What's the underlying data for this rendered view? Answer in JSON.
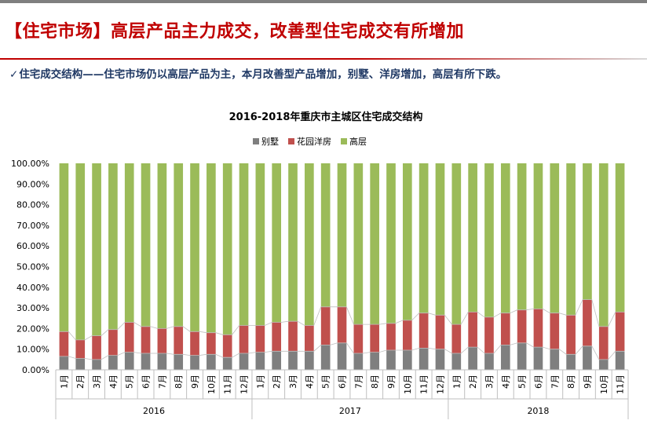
{
  "page": {
    "headline": "【住宅市场】高层产品主力成交，改善型住宅成交有所增加",
    "check_mark": "✓",
    "subhead": "住宅成交结构——住宅市场仍以高层产品为主，本月改善型产品增加，别墅、洋房增加，高层有所下跌。"
  },
  "chart_data": {
    "type": "bar",
    "stacked": true,
    "title": "2016-2018年重庆市主城区住宅成交结构",
    "legend_position": "top-center",
    "grid": false,
    "ylim": [
      0,
      100
    ],
    "y_ticks": [
      "0.00%",
      "10.00%",
      "20.00%",
      "30.00%",
      "40.00%",
      "50.00%",
      "60.00%",
      "70.00%",
      "80.00%",
      "90.00%",
      "100.00%"
    ],
    "year_groups": [
      {
        "label": "2016",
        "count": 12
      },
      {
        "label": "2017",
        "count": 12
      },
      {
        "label": "2018",
        "count": 11
      }
    ],
    "categories": [
      "1月",
      "2月",
      "3月",
      "4月",
      "5月",
      "6月",
      "7月",
      "8月",
      "9月",
      "10月",
      "11月",
      "12月",
      "1月",
      "2月",
      "3月",
      "4月",
      "5月",
      "6月",
      "7月",
      "8月",
      "9月",
      "10月",
      "11月",
      "12月",
      "1月",
      "2月",
      "3月",
      "4月",
      "5月",
      "6月",
      "7月",
      "8月",
      "9月",
      "10月",
      "11月"
    ],
    "series": [
      {
        "name": "别墅",
        "color": "#7f7f7f",
        "values": [
          6.5,
          5.5,
          5.0,
          7.0,
          8.5,
          8.0,
          8.0,
          7.5,
          7.0,
          7.5,
          6.0,
          8.0,
          8.5,
          9.0,
          9.0,
          9.0,
          12.0,
          13.0,
          8.0,
          8.5,
          9.5,
          9.5,
          10.5,
          10.0,
          8.0,
          11.0,
          8.0,
          12.0,
          13.0,
          11.0,
          10.0,
          7.5,
          11.5,
          5.0,
          9.0
        ]
      },
      {
        "name": "花园洋房",
        "color": "#c0504d",
        "values": [
          12.0,
          9.0,
          11.5,
          12.5,
          14.5,
          13.0,
          12.0,
          13.5,
          11.5,
          10.5,
          11.0,
          13.5,
          13.0,
          14.0,
          14.5,
          12.5,
          18.5,
          17.5,
          14.0,
          13.5,
          13.0,
          14.5,
          17.0,
          16.5,
          14.0,
          17.0,
          17.5,
          15.5,
          16.0,
          18.5,
          17.5,
          19.0,
          22.5,
          16.0,
          19.0
        ]
      },
      {
        "name": "高层",
        "color": "#9bbb59",
        "values": [
          81.5,
          85.5,
          83.5,
          80.5,
          77.0,
          79.0,
          80.0,
          79.0,
          81.5,
          82.0,
          83.0,
          78.5,
          78.5,
          77.0,
          76.5,
          78.5,
          69.5,
          69.5,
          78.0,
          78.0,
          77.5,
          76.0,
          72.5,
          73.5,
          78.0,
          72.0,
          74.5,
          72.5,
          71.0,
          70.5,
          72.5,
          73.5,
          66.0,
          79.0,
          72.0
        ]
      }
    ]
  }
}
